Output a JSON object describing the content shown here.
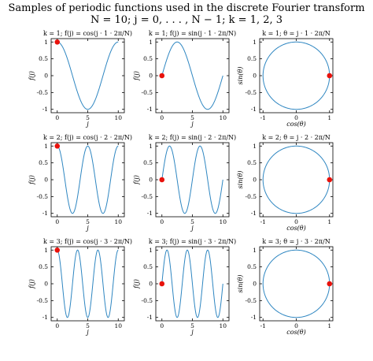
{
  "figure": {
    "title_line1": "Samples of periodic functions used in the discrete Fourier transform",
    "title_line2": "N = 10; j = 0, . . . , N − 1; k = 1, 2, 3"
  },
  "colors": {
    "curve": "#2e86c1",
    "marker": "#e8120c",
    "axis": "#000000",
    "background": "#ffffff"
  },
  "chart_data": [
    {
      "type": "line",
      "row": 1,
      "col": 1,
      "k": 1,
      "title": "k = 1; f(j) = cos(j · 1 · 2π/N)",
      "xlabel": "j",
      "ylabel": "f(j)",
      "series": [
        {
          "func": "cos",
          "k": 1,
          "N": 10,
          "x": [
            0,
            10
          ]
        }
      ],
      "marker": {
        "x": 0,
        "y": 1
      },
      "xlim": [
        -1,
        11
      ],
      "ylim": [
        -1.1,
        1.1
      ],
      "xticks": [
        0,
        5,
        10
      ],
      "yticks": [
        1,
        0.5,
        0,
        -0.5,
        -1
      ],
      "grid": false
    },
    {
      "type": "line",
      "row": 1,
      "col": 2,
      "k": 1,
      "title": "k = 1; f(j) = sin(j · 1 · 2π/N)",
      "xlabel": "j",
      "ylabel": "f(j)",
      "series": [
        {
          "func": "sin",
          "k": 1,
          "N": 10,
          "x": [
            0,
            10
          ]
        }
      ],
      "marker": {
        "x": 0,
        "y": 0
      },
      "xlim": [
        -1,
        11
      ],
      "ylim": [
        -1.1,
        1.1
      ],
      "xticks": [
        0,
        5,
        10
      ],
      "yticks": [
        1,
        0.5,
        0,
        -0.5,
        -1
      ],
      "grid": false
    },
    {
      "type": "line",
      "row": 1,
      "col": 3,
      "k": 1,
      "title": "k = 1; θ = j · 1 · 2π/N",
      "xlabel": "cos(θ)",
      "ylabel": "sin(θ)",
      "series": [
        {
          "func": "circle",
          "k": 1,
          "N": 10
        }
      ],
      "marker": {
        "x": 1,
        "y": 0
      },
      "xlim": [
        -1.1,
        1.1
      ],
      "ylim": [
        -1.1,
        1.1
      ],
      "xticks": [
        -1,
        0,
        1
      ],
      "yticks": [
        1,
        0.5,
        0,
        -0.5,
        -1
      ],
      "grid": false
    },
    {
      "type": "line",
      "row": 2,
      "col": 1,
      "k": 2,
      "title": "k = 2; f(j) = cos(j · 2 · 2π/N)",
      "xlabel": "j",
      "ylabel": "f(j)",
      "series": [
        {
          "func": "cos",
          "k": 2,
          "N": 10,
          "x": [
            0,
            10
          ]
        }
      ],
      "marker": {
        "x": 0,
        "y": 1
      },
      "xlim": [
        -1,
        11
      ],
      "ylim": [
        -1.1,
        1.1
      ],
      "xticks": [
        0,
        5,
        10
      ],
      "yticks": [
        1,
        0.5,
        0,
        -0.5,
        -1
      ],
      "grid": false
    },
    {
      "type": "line",
      "row": 2,
      "col": 2,
      "k": 2,
      "title": "k = 2; f(j) = sin(j · 2 · 2π/N)",
      "xlabel": "j",
      "ylabel": "f(j)",
      "series": [
        {
          "func": "sin",
          "k": 2,
          "N": 10,
          "x": [
            0,
            10
          ]
        }
      ],
      "marker": {
        "x": 0,
        "y": 0
      },
      "xlim": [
        -1,
        11
      ],
      "ylim": [
        -1.1,
        1.1
      ],
      "xticks": [
        0,
        5,
        10
      ],
      "yticks": [
        1,
        0.5,
        0,
        -0.5,
        -1
      ],
      "grid": false
    },
    {
      "type": "line",
      "row": 2,
      "col": 3,
      "k": 2,
      "title": "k = 2; θ = j · 2 · 2π/N",
      "xlabel": "cos(θ)",
      "ylabel": "sin(θ)",
      "series": [
        {
          "func": "circle",
          "k": 2,
          "N": 10
        }
      ],
      "marker": {
        "x": 1,
        "y": 0
      },
      "xlim": [
        -1.1,
        1.1
      ],
      "ylim": [
        -1.1,
        1.1
      ],
      "xticks": [
        -1,
        0,
        1
      ],
      "yticks": [
        1,
        0.5,
        0,
        -0.5,
        -1
      ],
      "grid": false
    },
    {
      "type": "line",
      "row": 3,
      "col": 1,
      "k": 3,
      "title": "k = 3; f(j) = cos(j · 3 · 2π/N)",
      "xlabel": "j",
      "ylabel": "f(j)",
      "series": [
        {
          "func": "cos",
          "k": 3,
          "N": 10,
          "x": [
            0,
            10
          ]
        }
      ],
      "marker": {
        "x": 0,
        "y": 1
      },
      "xlim": [
        -1,
        11
      ],
      "ylim": [
        -1.1,
        1.1
      ],
      "xticks": [
        0,
        5,
        10
      ],
      "yticks": [
        1,
        0.5,
        0,
        -0.5,
        -1
      ],
      "grid": false
    },
    {
      "type": "line",
      "row": 3,
      "col": 2,
      "k": 3,
      "title": "k = 3; f(j) = sin(j · 3 · 2π/N)",
      "xlabel": "j",
      "ylabel": "f(j)",
      "series": [
        {
          "func": "sin",
          "k": 3,
          "N": 10,
          "x": [
            0,
            10
          ]
        }
      ],
      "marker": {
        "x": 0,
        "y": 0
      },
      "xlim": [
        -1,
        11
      ],
      "ylim": [
        -1.1,
        1.1
      ],
      "xticks": [
        0,
        5,
        10
      ],
      "yticks": [
        1,
        0.5,
        0,
        -0.5,
        -1
      ],
      "grid": false
    },
    {
      "type": "line",
      "row": 3,
      "col": 3,
      "k": 3,
      "title": "k = 3; θ = j · 3 · 2π/N",
      "xlabel": "cos(θ)",
      "ylabel": "sin(θ)",
      "series": [
        {
          "func": "circle",
          "k": 3,
          "N": 10
        }
      ],
      "marker": {
        "x": 1,
        "y": 0
      },
      "xlim": [
        -1.1,
        1.1
      ],
      "ylim": [
        -1.1,
        1.1
      ],
      "xticks": [
        -1,
        0,
        1
      ],
      "yticks": [
        1,
        0.5,
        0,
        -0.5,
        -1
      ],
      "grid": false
    }
  ]
}
